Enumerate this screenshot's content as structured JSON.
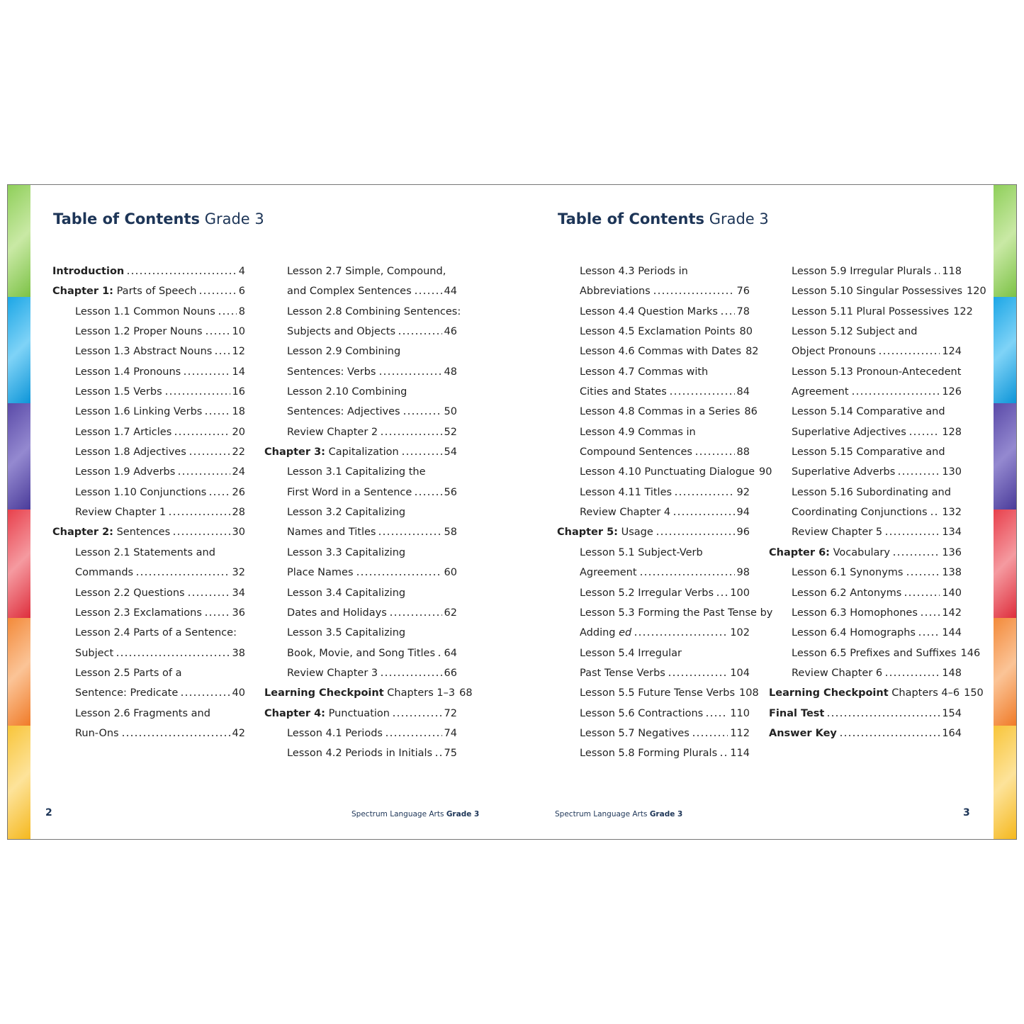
{
  "pages": [
    {
      "title_bold": "Table of Contents",
      "title_rest": "Grade 3",
      "columns": [
        [
          {
            "bold": "Introduction",
            "page": 4
          },
          {
            "bold": "Chapter 1:",
            "text": " Parts of Speech",
            "page": 6
          },
          {
            "text": "Lesson 1.1 Common Nouns",
            "page": 8
          },
          {
            "text": "Lesson 1.2 Proper Nouns",
            "page": 10
          },
          {
            "text": "Lesson 1.3 Abstract Nouns",
            "page": 12
          },
          {
            "text": "Lesson 1.4 Pronouns",
            "page": 14
          },
          {
            "text": "Lesson 1.5 Verbs",
            "page": 16
          },
          {
            "text": "Lesson 1.6 Linking Verbs",
            "page": 18
          },
          {
            "text": "Lesson 1.7 Articles",
            "page": 20
          },
          {
            "text": "Lesson 1.8 Adjectives",
            "page": 22
          },
          {
            "text": "Lesson 1.9 Adverbs",
            "page": 24
          },
          {
            "text": "Lesson 1.10 Conjunctions",
            "page": 26
          },
          {
            "text": "Review Chapter 1",
            "page": 28
          },
          {
            "bold": "Chapter 2:",
            "text": " Sentences",
            "page": 30
          },
          {
            "text": "Lesson 2.1 Statements and"
          },
          {
            "text": "Commands",
            "page": 32
          },
          {
            "text": "Lesson 2.2 Questions",
            "page": 34
          },
          {
            "text": "Lesson 2.3 Exclamations",
            "page": 36
          },
          {
            "text": "Lesson 2.4 Parts of a Sentence:"
          },
          {
            "text": "Subject",
            "page": 38
          },
          {
            "text": "Lesson 2.5 Parts of a"
          },
          {
            "text": "Sentence: Predicate",
            "page": 40
          },
          {
            "text": "Lesson 2.6 Fragments and"
          },
          {
            "text": "Run-Ons",
            "page": 42
          }
        ],
        [
          {
            "text": "Lesson 2.7 Simple, Compound,"
          },
          {
            "text": "and Complex Sentences",
            "page": 44
          },
          {
            "text": "Lesson 2.8 Combining Sentences:"
          },
          {
            "text": "Subjects and Objects",
            "page": 46
          },
          {
            "text": "Lesson 2.9 Combining"
          },
          {
            "text": "Sentences: Verbs",
            "page": 48
          },
          {
            "text": "Lesson 2.10 Combining"
          },
          {
            "text": "Sentences: Adjectives",
            "page": 50
          },
          {
            "text": "Review Chapter 2",
            "page": 52
          },
          {
            "bold": "Chapter 3:",
            "text": " Capitalization",
            "page": 54
          },
          {
            "text": "Lesson 3.1 Capitalizing the"
          },
          {
            "text": "First Word in a Sentence",
            "page": 56
          },
          {
            "text": "Lesson 3.2 Capitalizing"
          },
          {
            "text": "Names and Titles",
            "page": 58
          },
          {
            "text": "Lesson 3.3 Capitalizing"
          },
          {
            "text": "Place Names",
            "page": 60
          },
          {
            "text": "Lesson 3.4 Capitalizing"
          },
          {
            "text": "Dates and Holidays",
            "page": 62
          },
          {
            "text": "Lesson 3.5 Capitalizing"
          },
          {
            "text": "Book, Movie, and Song Titles",
            "page": 64
          },
          {
            "text": "Review Chapter 3",
            "page": 66
          },
          {
            "bold": "Learning Checkpoint",
            "text": " Chapters 1–3",
            "page": 68
          },
          {
            "bold": "Chapter 4:",
            "text": " Punctuation",
            "page": 72
          },
          {
            "text": "Lesson 4.1 Periods",
            "page": 74
          },
          {
            "text": "Lesson 4.2 Periods in Initials",
            "page": 75
          }
        ]
      ],
      "footer": {
        "page_number": 2,
        "series": "Spectrum Language Arts",
        "grade": "Grade 3"
      }
    },
    {
      "title_bold": "Table of Contents",
      "title_rest": "Grade 3",
      "columns": [
        [
          {
            "text": "Lesson 4.3 Periods in"
          },
          {
            "text": "Abbreviations",
            "page": 76
          },
          {
            "text": "Lesson 4.4 Question Marks",
            "page": 78
          },
          {
            "text": "Lesson 4.5 Exclamation Points",
            "page": 80
          },
          {
            "text": "Lesson 4.6 Commas with Dates",
            "page": 82
          },
          {
            "text": "Lesson 4.7 Commas with"
          },
          {
            "text": "Cities and States",
            "page": 84
          },
          {
            "text": "Lesson 4.8 Commas in a Series",
            "page": 86
          },
          {
            "text": "Lesson 4.9 Commas in"
          },
          {
            "text": "Compound Sentences",
            "page": 88
          },
          {
            "text": "Lesson 4.10 Punctuating Dialogue",
            "page": 90
          },
          {
            "text": "Lesson 4.11 Titles",
            "page": 92
          },
          {
            "text": "Review Chapter 4",
            "page": 94
          },
          {
            "bold": "Chapter 5:",
            "text": " Usage",
            "page": 96
          },
          {
            "text": "Lesson 5.1 Subject-Verb"
          },
          {
            "text": "Agreement",
            "page": 98
          },
          {
            "text": "Lesson 5.2 Irregular Verbs",
            "page": 100
          },
          {
            "text": "Lesson 5.3 Forming the Past Tense by"
          },
          {
            "text": "Adding ",
            "italic": "ed",
            "page": 102
          },
          {
            "text": "Lesson 5.4 Irregular"
          },
          {
            "text": "Past Tense Verbs",
            "page": 104
          },
          {
            "text": "Lesson 5.5 Future Tense Verbs",
            "page": 108
          },
          {
            "text": "Lesson 5.6 Contractions",
            "page": 110
          },
          {
            "text": "Lesson 5.7 Negatives",
            "page": 112
          },
          {
            "text": "Lesson 5.8 Forming Plurals",
            "page": 114
          }
        ],
        [
          {
            "text": "Lesson 5.9 Irregular Plurals",
            "page": 118
          },
          {
            "text": "Lesson 5.10 Singular Possessives",
            "page": 120
          },
          {
            "text": "Lesson 5.11 Plural Possessives",
            "page": 122
          },
          {
            "text": "Lesson 5.12 Subject and"
          },
          {
            "text": "Object Pronouns",
            "page": 124
          },
          {
            "text": "Lesson 5.13 Pronoun-Antecedent"
          },
          {
            "text": "Agreement",
            "page": 126
          },
          {
            "text": "Lesson 5.14 Comparative and"
          },
          {
            "text": "Superlative Adjectives",
            "page": 128
          },
          {
            "text": "Lesson 5.15 Comparative and"
          },
          {
            "text": "Superlative Adverbs",
            "page": 130
          },
          {
            "text": "Lesson 5.16 Subordinating and"
          },
          {
            "text": "Coordinating Conjunctions",
            "page": 132
          },
          {
            "text": "Review Chapter 5",
            "page": 134
          },
          {
            "bold": "Chapter 6:",
            "text": " Vocabulary",
            "page": 136
          },
          {
            "text": "Lesson 6.1 Synonyms",
            "page": 138
          },
          {
            "text": "Lesson 6.2 Antonyms",
            "page": 140
          },
          {
            "text": "Lesson 6.3 Homophones",
            "page": 142
          },
          {
            "text": "Lesson 6.4 Homographs",
            "page": 144
          },
          {
            "text": "Lesson 6.5 Prefixes and Suffixes",
            "page": 146
          },
          {
            "text": "Review Chapter 6",
            "page": 148
          },
          {
            "bold": "Learning Checkpoint",
            "text": " Chapters 4–6",
            "page": 150
          },
          {
            "bold": "Final Test",
            "page": 154
          },
          {
            "bold": "Answer Key",
            "page": 164
          }
        ]
      ],
      "footer": {
        "page_number": 3,
        "series": "Spectrum Language Arts",
        "grade": "Grade 3"
      }
    }
  ]
}
